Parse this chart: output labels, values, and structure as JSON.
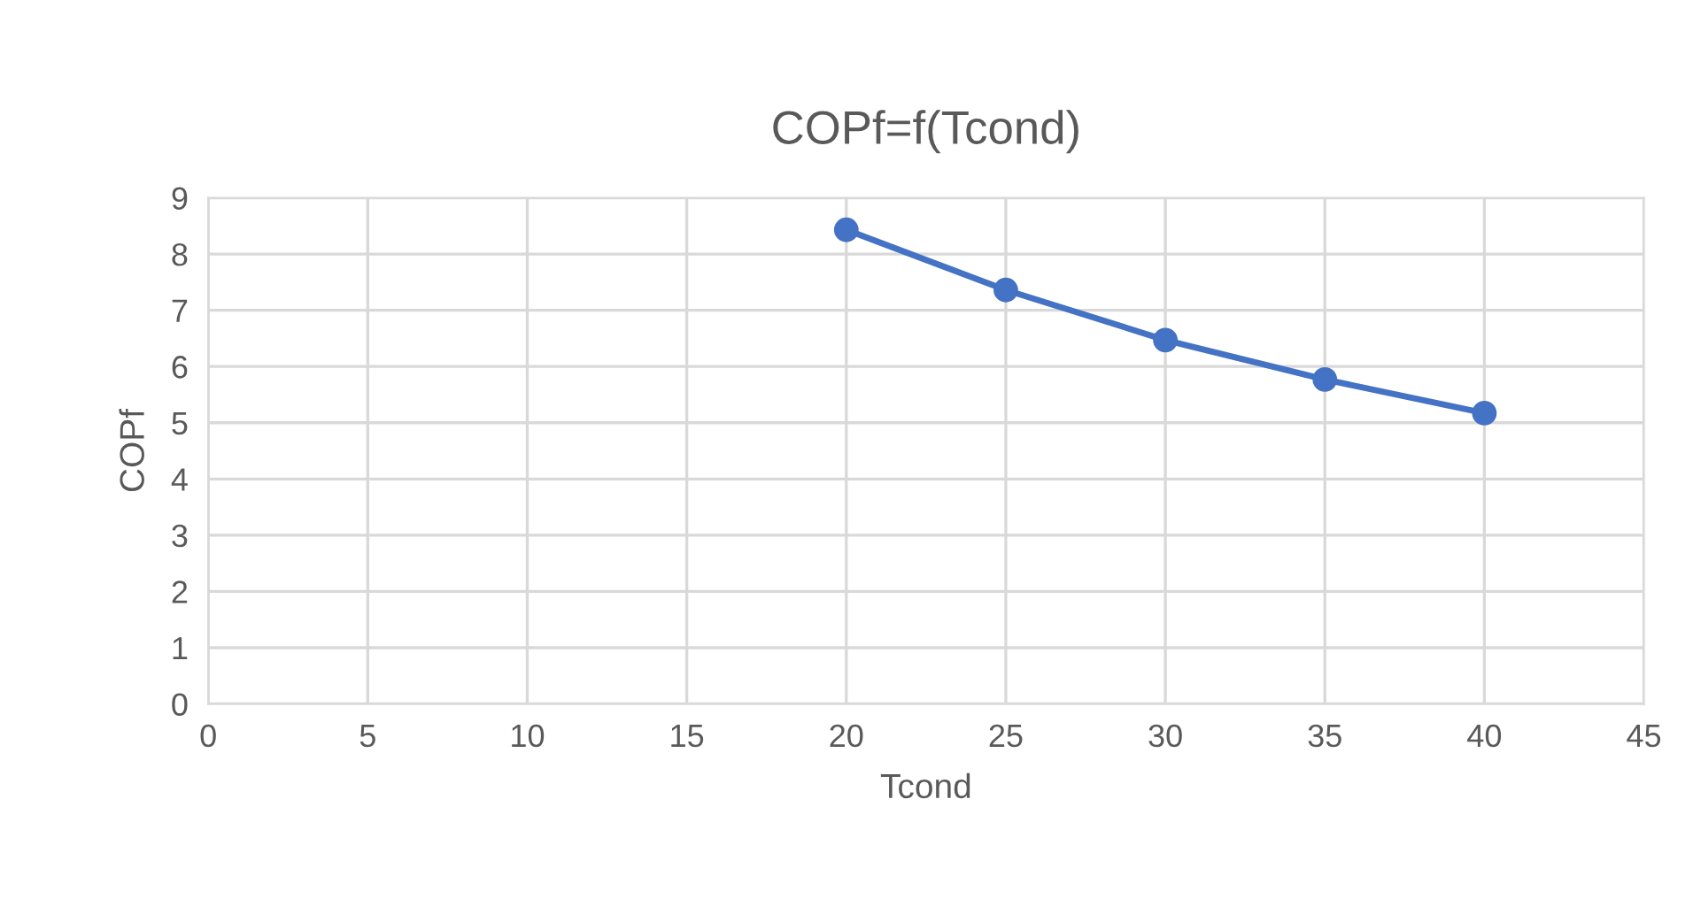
{
  "chart_data": {
    "type": "line",
    "title": "COPf=f(Tcond)",
    "xlabel": "Tcond",
    "ylabel": "COPf",
    "x": [
      20,
      25,
      30,
      35,
      40
    ],
    "series": [
      {
        "color": "#4472c4",
        "values": [
          8.43,
          7.36,
          6.47,
          5.77,
          5.17
        ]
      }
    ],
    "xlim": [
      0,
      45
    ],
    "xticks": [
      0,
      5,
      10,
      15,
      20,
      25,
      30,
      35,
      40,
      45
    ],
    "ylim": [
      0,
      9
    ],
    "yticks": [
      0,
      1,
      2,
      3,
      4,
      5,
      6,
      7,
      8,
      9
    ],
    "grid": true,
    "marker": "circle",
    "line_style": "solid",
    "legend": false
  }
}
